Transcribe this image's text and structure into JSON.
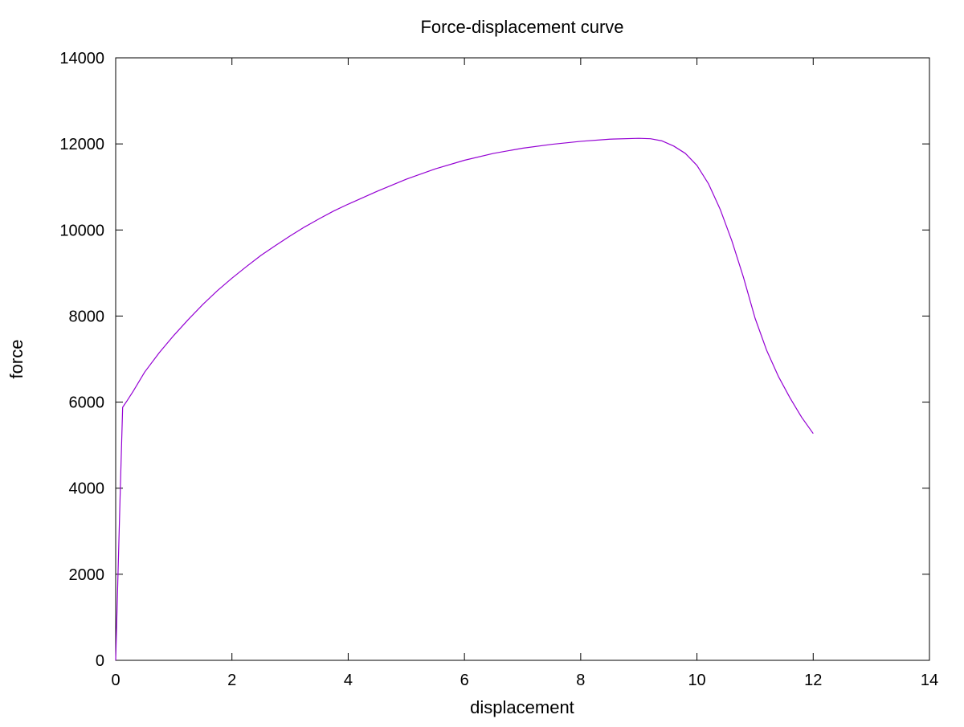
{
  "colors": {
    "series": "#9400d3",
    "axis": "#000000",
    "background": "#ffffff"
  },
  "chart_data": {
    "type": "line",
    "title": "Force-displacement curve",
    "xlabel": "displacement",
    "ylabel": "force",
    "xlim": [
      0,
      14
    ],
    "ylim": [
      0,
      14000
    ],
    "xticks": [
      0,
      2,
      4,
      6,
      8,
      10,
      12,
      14
    ],
    "xtick_labels": [
      "0",
      "2",
      "4",
      "6",
      "8",
      "10",
      "12",
      "14"
    ],
    "yticks": [
      0,
      2000,
      4000,
      6000,
      8000,
      10000,
      12000,
      14000
    ],
    "ytick_labels": [
      "0",
      "2000",
      "4000",
      "6000",
      "8000",
      "10000",
      "12000",
      "14000"
    ],
    "grid": false,
    "legend": "none",
    "series": [
      {
        "x": [
          0,
          0.04,
          0.08,
          0.12,
          0.2,
          0.3,
          0.5,
          0.75,
          1.0,
          1.25,
          1.5,
          1.75,
          2.0,
          2.25,
          2.5,
          2.75,
          3.0,
          3.25,
          3.5,
          3.75,
          4.0,
          4.5,
          5.0,
          5.5,
          6.0,
          6.5,
          7.0,
          7.5,
          8.0,
          8.5,
          9.0,
          9.2,
          9.4,
          9.6,
          9.8,
          10.0,
          10.2,
          10.4,
          10.6,
          10.8,
          11.0,
          11.2,
          11.4,
          11.6,
          11.8,
          12.0
        ],
        "y": [
          0,
          2000,
          4000,
          5880,
          6040,
          6250,
          6700,
          7150,
          7550,
          7920,
          8270,
          8590,
          8880,
          9150,
          9410,
          9640,
          9860,
          10070,
          10260,
          10440,
          10600,
          10900,
          11180,
          11420,
          11620,
          11780,
          11900,
          11990,
          12060,
          12110,
          12130,
          12120,
          12070,
          11950,
          11780,
          11500,
          11070,
          10480,
          9750,
          8900,
          7950,
          7200,
          6600,
          6100,
          5650,
          5270
        ]
      }
    ]
  }
}
